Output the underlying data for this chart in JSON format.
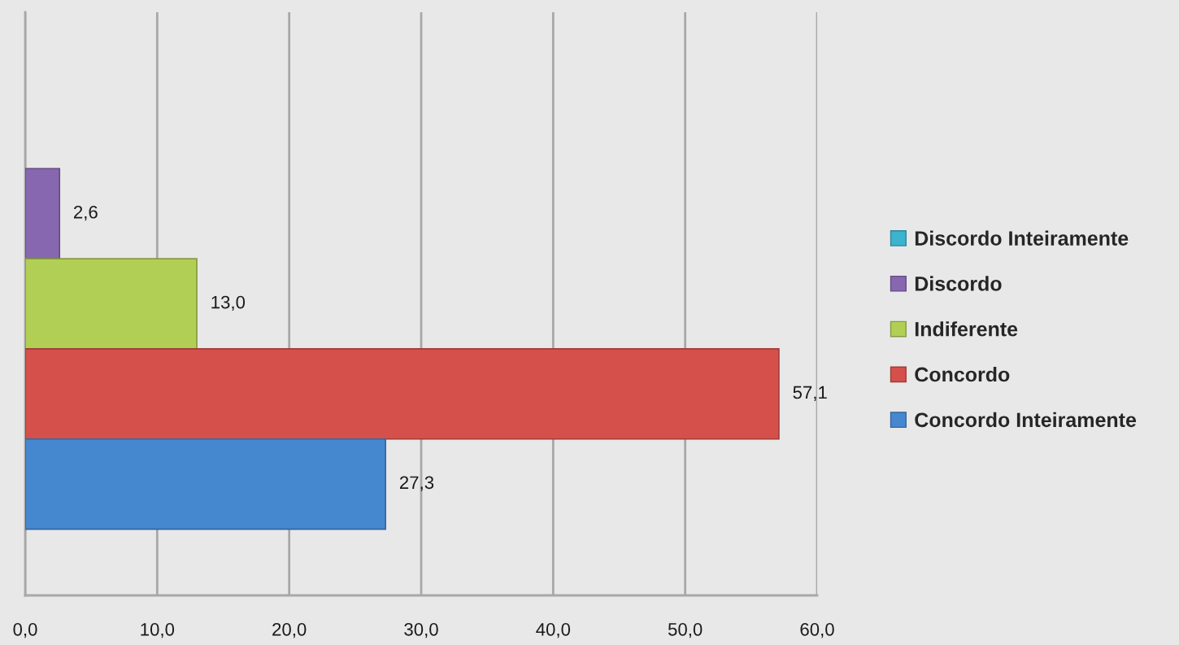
{
  "chart_data": {
    "type": "bar",
    "orientation": "horizontal",
    "categories": [
      null
    ],
    "series": [
      {
        "name": "Discordo Inteiramente",
        "color": "#3cb3cf",
        "values": [
          null
        ],
        "value_labels": [
          null
        ]
      },
      {
        "name": "Discordo",
        "color": "#8767b0",
        "values": [
          2.6
        ],
        "value_labels": [
          "2,6"
        ]
      },
      {
        "name": "Indiferente",
        "color": "#b2cf55",
        "values": [
          13.0
        ],
        "value_labels": [
          "13,0"
        ]
      },
      {
        "name": "Concordo",
        "color": "#d6504b",
        "values": [
          57.1
        ],
        "value_labels": [
          "57,1"
        ]
      },
      {
        "name": "Concordo Inteiramente",
        "color": "#4688d0",
        "values": [
          27.3
        ],
        "value_labels": [
          "27,3"
        ]
      }
    ],
    "xlim": [
      0,
      60
    ],
    "xticks": [
      {
        "value": 0,
        "label": "0,0"
      },
      {
        "value": 10,
        "label": "10,0"
      },
      {
        "value": 20,
        "label": "20,0"
      },
      {
        "value": 30,
        "label": "30,0"
      },
      {
        "value": 40,
        "label": "40,0"
      },
      {
        "value": 50,
        "label": "50,0"
      },
      {
        "value": 60,
        "label": "60,0"
      }
    ],
    "grid": "x",
    "legend": "right"
  }
}
